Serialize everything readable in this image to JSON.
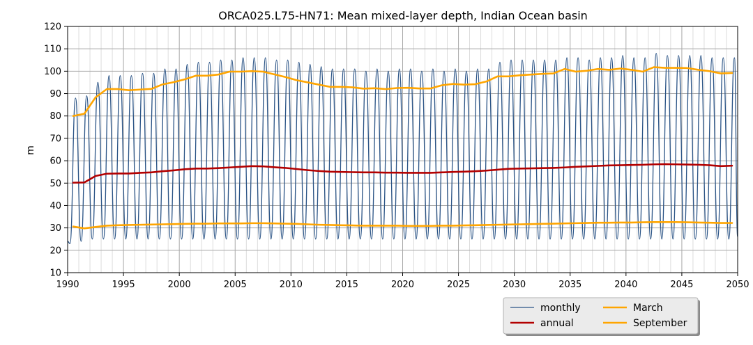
{
  "chart_data": {
    "type": "line",
    "title": "ORCA025.L75-HN71: Mean mixed-layer depth, Indian Ocean basin",
    "xlabel": "",
    "ylabel": "m",
    "xlim": [
      1990,
      2050
    ],
    "ylim": [
      10,
      120
    ],
    "x_ticks": [
      1990,
      1995,
      2000,
      2005,
      2010,
      2015,
      2020,
      2025,
      2030,
      2035,
      2040,
      2045,
      2050
    ],
    "y_ticks": [
      10,
      20,
      30,
      40,
      50,
      60,
      70,
      80,
      90,
      100,
      110,
      120
    ],
    "grid": true,
    "legend_placement": "below-right",
    "years": [
      1990,
      1991,
      1992,
      1993,
      1994,
      1995,
      1996,
      1997,
      1998,
      1999,
      2000,
      2001,
      2002,
      2003,
      2004,
      2005,
      2006,
      2007,
      2008,
      2009,
      2010,
      2011,
      2012,
      2013,
      2014,
      2015,
      2016,
      2017,
      2018,
      2019,
      2020,
      2021,
      2022,
      2023,
      2024,
      2025,
      2026,
      2027,
      2028,
      2029,
      2030,
      2031,
      2032,
      2033,
      2034,
      2035,
      2036,
      2037,
      2038,
      2039,
      2040,
      2041,
      2042,
      2043,
      2044,
      2045,
      2046,
      2047,
      2048,
      2049
    ],
    "series": [
      {
        "name": "monthly",
        "color": "#2b5486",
        "style": "thin",
        "march_lows": [
          23,
          24,
          25,
          25,
          25,
          25,
          25,
          25,
          25,
          25,
          25,
          25,
          25,
          25,
          25,
          25,
          25,
          25,
          25,
          25,
          25,
          25,
          25,
          25,
          25,
          25,
          25,
          25,
          25,
          25,
          25,
          25,
          25,
          25,
          25,
          25,
          25,
          25,
          25,
          25,
          25,
          25,
          25,
          25,
          25,
          25,
          25,
          25,
          25,
          25,
          25,
          25,
          25,
          25,
          25,
          25,
          25,
          25,
          25,
          25
        ],
        "sept_peaks": [
          88,
          89,
          95,
          98,
          98,
          98,
          99,
          99,
          101,
          101,
          103,
          104,
          104,
          105,
          105,
          106,
          106,
          106,
          105,
          105,
          104,
          103,
          102,
          101,
          101,
          101,
          100,
          101,
          100,
          101,
          101,
          100,
          101,
          100,
          101,
          100,
          101,
          101,
          104,
          105,
          105,
          105,
          105,
          105,
          106,
          106,
          105,
          106,
          106,
          107,
          106,
          106,
          108,
          107,
          107,
          107,
          107,
          106,
          106,
          106
        ],
        "end_value": 26
      },
      {
        "name": "annual",
        "color": "#b30000",
        "style": "thick",
        "values": [
          50.2,
          50.3,
          53.2,
          54.2,
          54.3,
          54.3,
          54.6,
          54.8,
          55.3,
          55.7,
          56.2,
          56.5,
          56.5,
          56.7,
          57.0,
          57.3,
          57.6,
          57.5,
          57.1,
          56.8,
          56.3,
          55.8,
          55.4,
          55.1,
          55.0,
          54.9,
          54.8,
          54.8,
          54.7,
          54.7,
          54.6,
          54.6,
          54.6,
          54.8,
          55.0,
          55.1,
          55.3,
          55.6,
          56.0,
          56.4,
          56.5,
          56.6,
          56.7,
          56.8,
          57.0,
          57.3,
          57.5,
          57.7,
          57.9,
          58.0,
          58.1,
          58.2,
          58.4,
          58.5,
          58.4,
          58.3,
          58.2,
          58.0,
          57.6,
          57.8
        ]
      },
      {
        "name": "March",
        "color": "#ffa500",
        "style": "thick",
        "values": [
          30.6,
          29.8,
          30.4,
          31.0,
          31.2,
          31.3,
          31.4,
          31.5,
          31.6,
          31.7,
          31.8,
          31.9,
          31.9,
          32.0,
          32.0,
          32.0,
          32.1,
          32.1,
          32.0,
          31.9,
          31.8,
          31.6,
          31.4,
          31.3,
          31.2,
          31.1,
          31.0,
          31.0,
          31.0,
          31.0,
          30.9,
          30.9,
          30.9,
          31.0,
          31.0,
          31.1,
          31.2,
          31.3,
          31.4,
          31.5,
          31.6,
          31.7,
          31.8,
          31.9,
          32.0,
          32.1,
          32.2,
          32.3,
          32.3,
          32.4,
          32.4,
          32.5,
          32.6,
          32.6,
          32.6,
          32.5,
          32.4,
          32.3,
          32.2,
          32.2
        ]
      },
      {
        "name": "September",
        "color": "#ffa500",
        "style": "thick",
        "values": [
          80.0,
          81.0,
          88.3,
          92.0,
          92.0,
          91.5,
          91.8,
          92.1,
          94.1,
          95.1,
          96.4,
          98.0,
          98.0,
          98.5,
          99.8,
          99.8,
          100.0,
          99.8,
          98.6,
          97.4,
          96.0,
          95.0,
          94.0,
          93.0,
          93.0,
          92.8,
          92.2,
          92.4,
          92.0,
          92.5,
          92.6,
          92.3,
          92.3,
          93.7,
          94.3,
          94.0,
          94.2,
          95.4,
          97.7,
          97.7,
          98.2,
          98.5,
          98.8,
          99.0,
          101.0,
          99.8,
          100.2,
          101.0,
          100.6,
          101.2,
          100.6,
          99.8,
          101.8,
          101.5,
          101.5,
          101.4,
          100.6,
          100.0,
          99.0,
          99.2
        ]
      }
    ]
  }
}
